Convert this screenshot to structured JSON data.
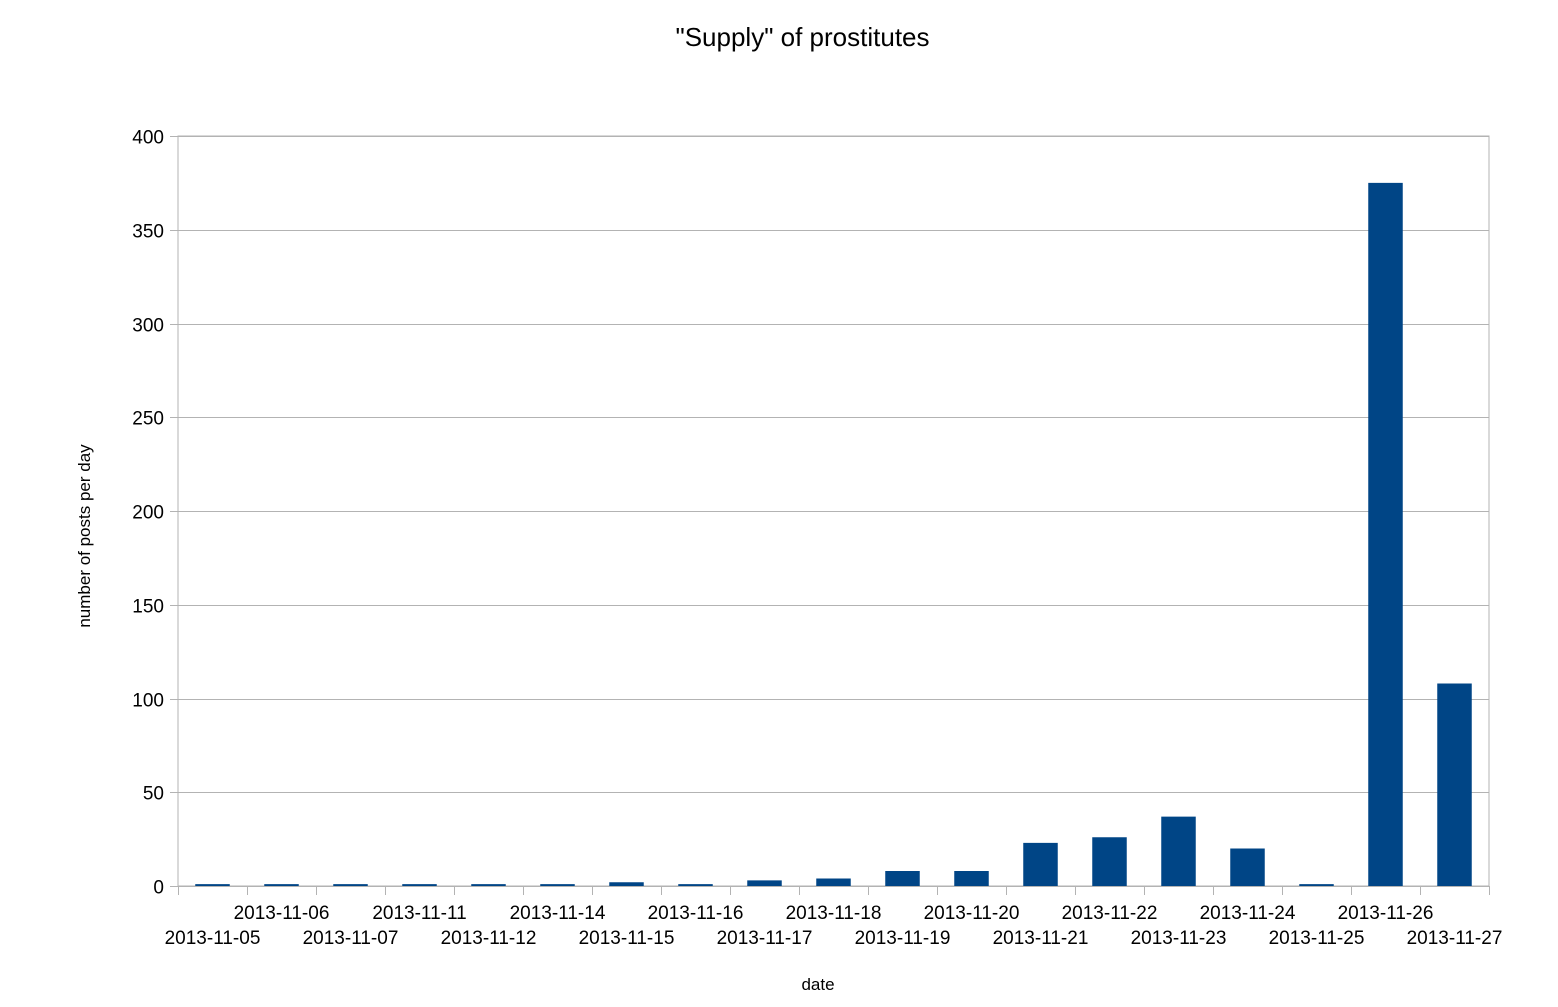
{
  "chart_data": {
    "type": "bar",
    "title": "\"Supply\" of prostitutes",
    "xlabel": "date",
    "ylabel": "number of posts per day",
    "categories": [
      "2013-11-05",
      "2013-11-06",
      "2013-11-07",
      "2013-11-11",
      "2013-11-12",
      "2013-11-14",
      "2013-11-15",
      "2013-11-16",
      "2013-11-17",
      "2013-11-18",
      "2013-11-19",
      "2013-11-20",
      "2013-11-21",
      "2013-11-22",
      "2013-11-23",
      "2013-11-24",
      "2013-11-25",
      "2013-11-26",
      "2013-11-27"
    ],
    "values": [
      1,
      1,
      1,
      1,
      1,
      1,
      2,
      1,
      3,
      4,
      8,
      8,
      23,
      26,
      37,
      20,
      1,
      375,
      108
    ],
    "ylim": [
      0,
      400
    ],
    "yticks": [
      0,
      50,
      100,
      150,
      200,
      250,
      300,
      350,
      400
    ],
    "grid": true,
    "legend": "none",
    "bar_color": "#004586",
    "grid_color": "#b3b3b3"
  }
}
